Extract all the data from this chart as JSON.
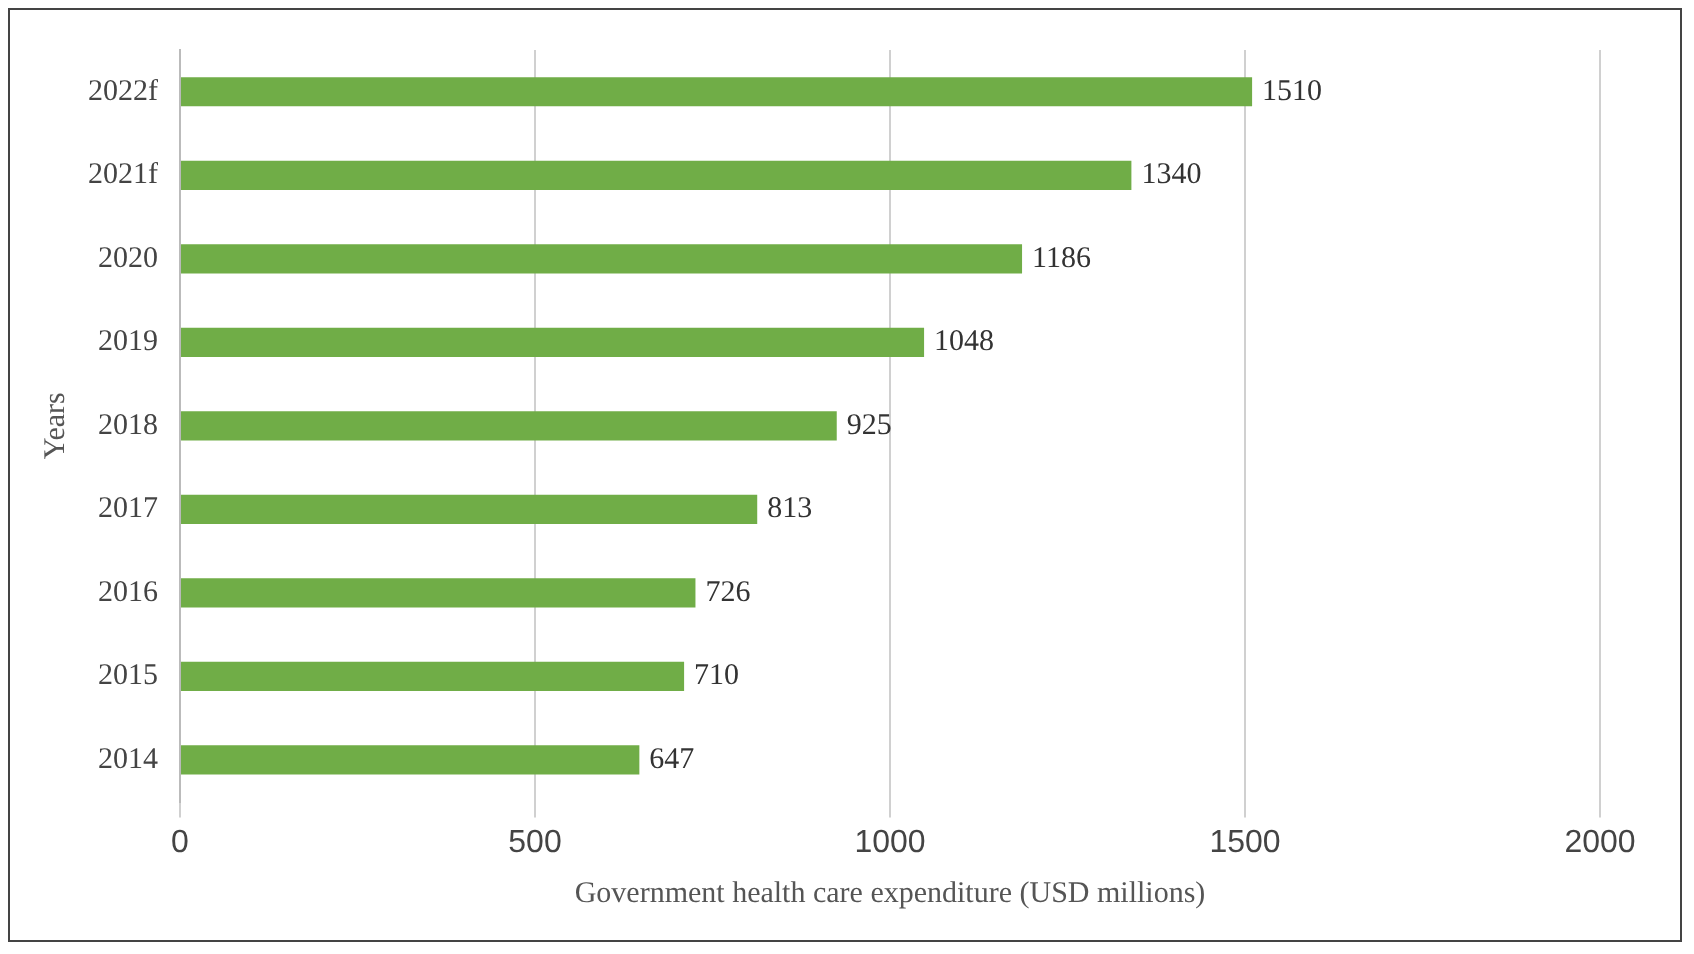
{
  "chart_data": {
    "type": "bar",
    "orientation": "horizontal",
    "xlabel": "Government health care expenditure (USD millions)",
    "ylabel": "Years",
    "categories": [
      "2022f",
      "2021f",
      "2020",
      "2019",
      "2018",
      "2017",
      "2016",
      "2015",
      "2014"
    ],
    "values": [
      1510,
      1340,
      1186,
      1048,
      925,
      813,
      726,
      710,
      647
    ],
    "color": "#70ad47",
    "xlim": [
      0,
      2000
    ],
    "xticks": [
      0,
      500,
      1000,
      1500,
      2000
    ],
    "grid": "x",
    "data_labels": true
  }
}
